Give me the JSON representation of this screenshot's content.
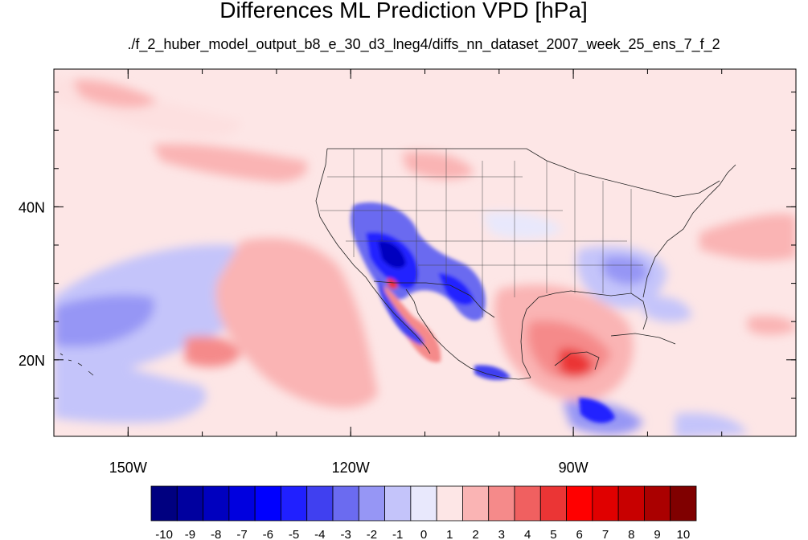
{
  "title": "Differences ML Prediction VPD [hPa]",
  "subtitle": "./f_2_huber_model_output_b8_e_30_d3_lneg4/diffs_nn_dataset_2007_week_25_ens_7_f_2",
  "axes": {
    "x_ticks": [
      {
        "value": -150,
        "label": "150W"
      },
      {
        "value": -120,
        "label": "120W"
      },
      {
        "value": -90,
        "label": "90W"
      }
    ],
    "y_ticks": [
      {
        "value": 40,
        "label": "40N"
      },
      {
        "value": 20,
        "label": "20N"
      }
    ],
    "lon_range": [
      -160,
      -60
    ],
    "lat_range": [
      10,
      58
    ]
  },
  "colorbar": {
    "labels": [
      "-10",
      "-9",
      "-8",
      "-7",
      "-6",
      "-5",
      "-4",
      "-3",
      "-2",
      "-1",
      "0",
      "1",
      "2",
      "3",
      "4",
      "5",
      "6",
      "7",
      "8",
      "9",
      "10"
    ],
    "colors": [
      "#000080",
      "#00009f",
      "#0000bf",
      "#0000df",
      "#0000ff",
      "#2020ff",
      "#4040f0",
      "#6b6bf0",
      "#9696f5",
      "#c4c4fa",
      "#e8e8fc",
      "#fde6e6",
      "#fab4b4",
      "#f58a8a",
      "#f06060",
      "#eb3535",
      "#ff0000",
      "#e00000",
      "#c80000",
      "#aa0000",
      "#800000"
    ]
  },
  "chart_data": {
    "type": "heatmap",
    "title": "Differences ML Prediction VPD [hPa]",
    "subtitle": "./f_2_huber_model_output_b8_e_30_d3_lneg4/diffs_nn_dataset_2007_week_25_ens_7_f_2",
    "variable": "VPD difference",
    "units": "hPa",
    "projection": "cylindrical equidistant",
    "xlim": [
      -160,
      -60
    ],
    "ylim": [
      10,
      58
    ],
    "color_levels": [
      -10,
      -9,
      -8,
      -7,
      -6,
      -5,
      -4,
      -3,
      -2,
      -1,
      0,
      1,
      2,
      3,
      4,
      5,
      6,
      7,
      8,
      9,
      10
    ],
    "features": [
      {
        "region": "Southwest US / Great Basin",
        "sign": "negative",
        "value_hPa": -5
      },
      {
        "region": "Gulf of California coast",
        "sign": "negative",
        "value_hPa": -3
      },
      {
        "region": "Baja California",
        "sign": "positive",
        "value_hPa": 3
      },
      {
        "region": "Gulf of Mexico / Yucatan",
        "sign": "positive",
        "value_hPa": 6
      },
      {
        "region": "Eastern Pacific off Baja",
        "sign": "positive",
        "value_hPa": 2
      },
      {
        "region": "Central Pacific",
        "sign": "negative",
        "value_hPa": -2
      },
      {
        "region": "Southeast US",
        "sign": "negative",
        "value_hPa": -2
      },
      {
        "region": "Central America",
        "sign": "negative",
        "value_hPa": -5
      }
    ]
  }
}
